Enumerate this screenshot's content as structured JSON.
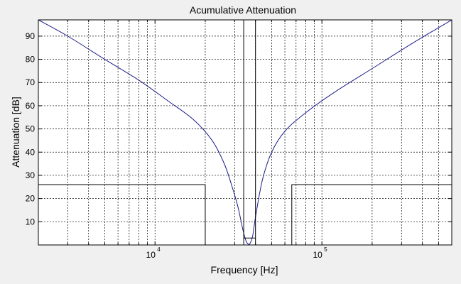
{
  "chart_data": {
    "type": "line",
    "title": "Acumulative Attenuation",
    "xlabel": "Frequency [Hz]",
    "ylabel": "Attenuation [dB]",
    "xscale": "log",
    "xlim": [
      2000,
      600000
    ],
    "ylim": [
      0,
      97
    ],
    "grid": true,
    "grid_style": "dashed",
    "x_tick_labels": [
      {
        "value": 10000,
        "base": "10",
        "exp": "4"
      },
      {
        "value": 100000,
        "base": "10",
        "exp": "5"
      }
    ],
    "y_ticks": [
      10,
      20,
      30,
      40,
      50,
      60,
      70,
      80,
      90
    ],
    "series": [
      {
        "color": "#1c1c8a",
        "style": "curve",
        "x": [
          2000,
          3000,
          5000,
          8000,
          12000,
          17000,
          22000,
          26000,
          29000,
          31500,
          33500,
          35000,
          36000,
          37000,
          38500,
          40000,
          44000,
          50000,
          60000,
          80000,
          120000,
          200000,
          350000,
          600000
        ],
        "y": [
          97,
          90,
          80,
          71,
          62,
          54,
          45,
          35,
          25,
          16,
          7,
          2,
          0.5,
          0.5,
          4,
          12,
          28,
          40,
          49,
          57,
          66,
          76,
          87,
          97
        ]
      },
      {
        "color": "#000000",
        "style": "mask",
        "x": [
          2000,
          20000,
          20000,
          34000,
          34000,
          34000,
          34000,
          40000,
          40000,
          40000,
          40000,
          66000,
          66000,
          600000
        ],
        "y": [
          26,
          26,
          0,
          0,
          3,
          97,
          3,
          3,
          97,
          3,
          0,
          0,
          26,
          26
        ]
      }
    ]
  }
}
